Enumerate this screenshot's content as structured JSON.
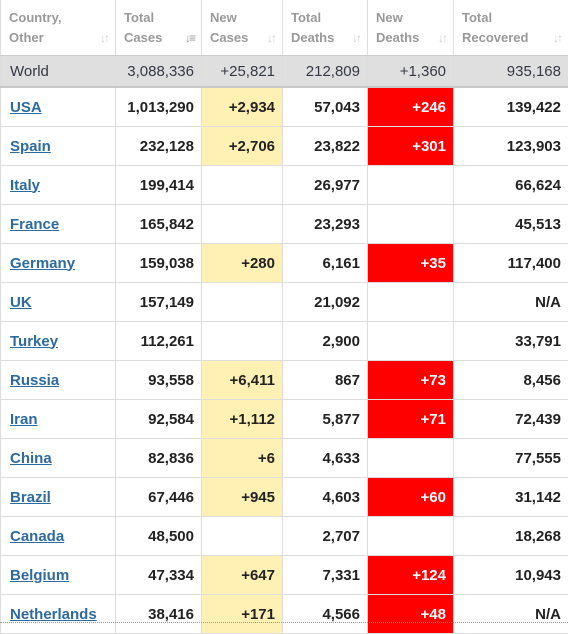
{
  "columns": [
    {
      "label_line1": "Country,",
      "label_line2": "Other"
    },
    {
      "label_line1": "Total",
      "label_line2": "Cases"
    },
    {
      "label_line1": "New",
      "label_line2": "Cases"
    },
    {
      "label_line1": "Total",
      "label_line2": "Deaths"
    },
    {
      "label_line1": "New",
      "label_line2": "Deaths"
    },
    {
      "label_line1": "Total",
      "label_line2": "Recovered"
    }
  ],
  "sort_icon": "sort-arrows",
  "world": {
    "name": "World",
    "total_cases": "3,088,336",
    "new_cases": "+25,821",
    "total_deaths": "212,809",
    "new_deaths": "+1,360",
    "total_recovered": "935,168"
  },
  "rows": [
    {
      "name": "USA",
      "total_cases": "1,013,290",
      "new_cases": "+2,934",
      "total_deaths": "57,043",
      "new_deaths": "+246",
      "total_recovered": "139,422"
    },
    {
      "name": "Spain",
      "total_cases": "232,128",
      "new_cases": "+2,706",
      "total_deaths": "23,822",
      "new_deaths": "+301",
      "total_recovered": "123,903"
    },
    {
      "name": "Italy",
      "total_cases": "199,414",
      "new_cases": "",
      "total_deaths": "26,977",
      "new_deaths": "",
      "total_recovered": "66,624"
    },
    {
      "name": "France",
      "total_cases": "165,842",
      "new_cases": "",
      "total_deaths": "23,293",
      "new_deaths": "",
      "total_recovered": "45,513"
    },
    {
      "name": "Germany",
      "total_cases": "159,038",
      "new_cases": "+280",
      "total_deaths": "6,161",
      "new_deaths": "+35",
      "total_recovered": "117,400"
    },
    {
      "name": "UK",
      "total_cases": "157,149",
      "new_cases": "",
      "total_deaths": "21,092",
      "new_deaths": "",
      "total_recovered": "N/A"
    },
    {
      "name": "Turkey",
      "total_cases": "112,261",
      "new_cases": "",
      "total_deaths": "2,900",
      "new_deaths": "",
      "total_recovered": "33,791"
    },
    {
      "name": "Russia",
      "total_cases": "93,558",
      "new_cases": "+6,411",
      "total_deaths": "867",
      "new_deaths": "+73",
      "total_recovered": "8,456"
    },
    {
      "name": "Iran",
      "total_cases": "92,584",
      "new_cases": "+1,112",
      "total_deaths": "5,877",
      "new_deaths": "+71",
      "total_recovered": "72,439"
    },
    {
      "name": "China",
      "total_cases": "82,836",
      "new_cases": "+6",
      "total_deaths": "4,633",
      "new_deaths": "",
      "total_recovered": "77,555"
    },
    {
      "name": "Brazil",
      "total_cases": "67,446",
      "new_cases": "+945",
      "total_deaths": "4,603",
      "new_deaths": "+60",
      "total_recovered": "31,142"
    },
    {
      "name": "Canada",
      "total_cases": "48,500",
      "new_cases": "",
      "total_deaths": "2,707",
      "new_deaths": "",
      "total_recovered": "18,268"
    },
    {
      "name": "Belgium",
      "total_cases": "47,334",
      "new_cases": "+647",
      "total_deaths": "7,331",
      "new_deaths": "+124",
      "total_recovered": "10,943"
    },
    {
      "name": "Netherlands",
      "total_cases": "38,416",
      "new_cases": "+171",
      "total_deaths": "4,566",
      "new_deaths": "+48",
      "total_recovered": "N/A"
    }
  ],
  "colors": {
    "new_cases_bg": "#fff0b4",
    "new_deaths_bg": "#ff0000",
    "link": "#2d6aa0",
    "world_row_bg": "#dfdfdf"
  }
}
